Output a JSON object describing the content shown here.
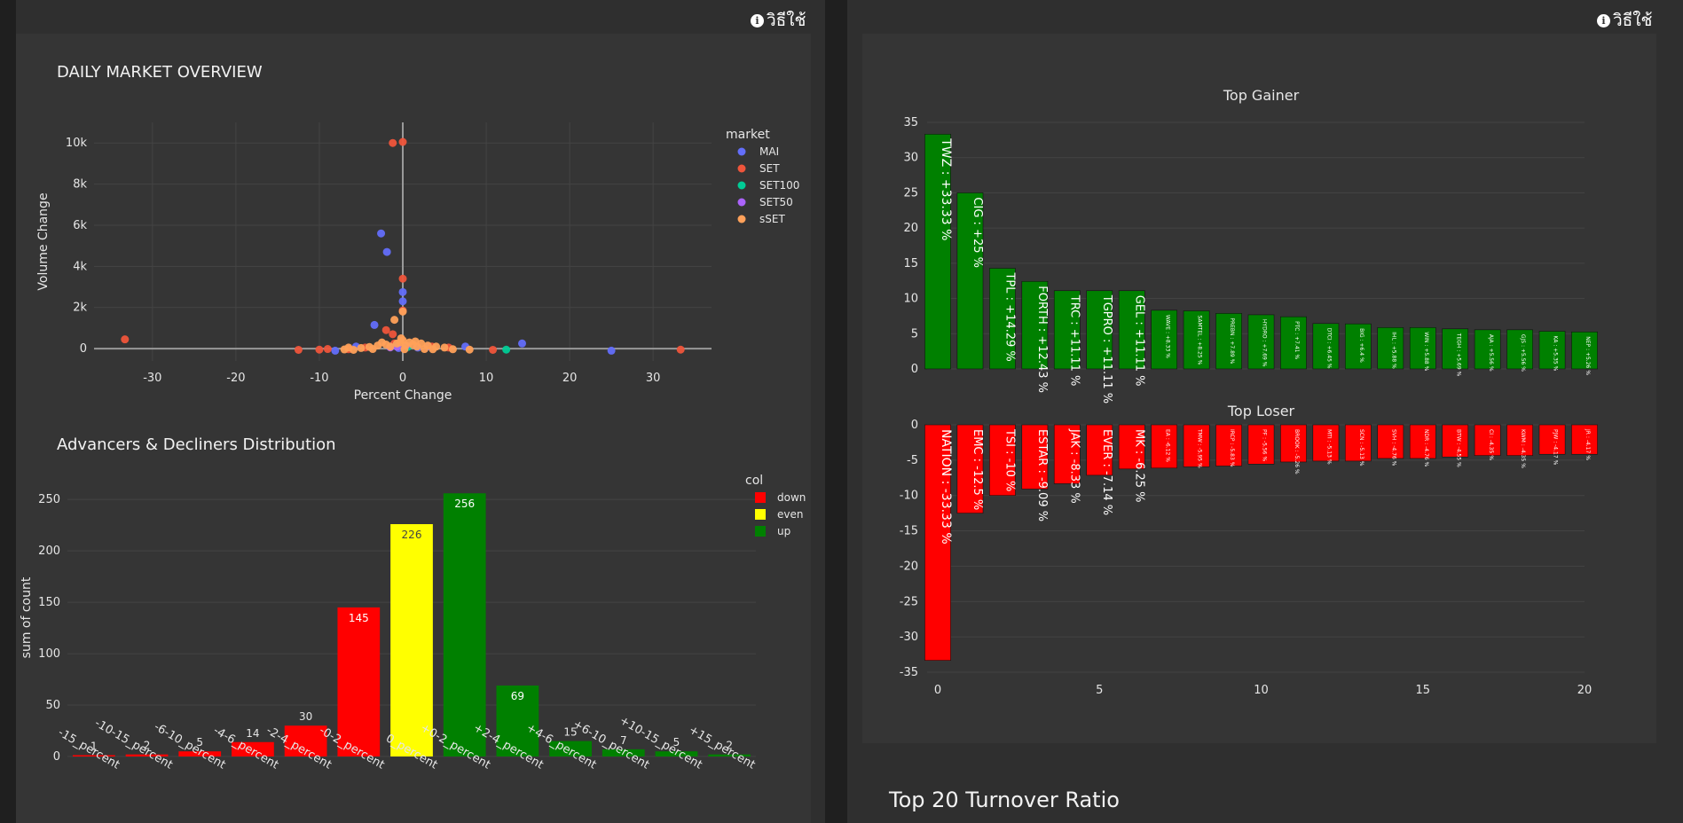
{
  "help_label": "วิธีใช้",
  "section_title": "Top 20 Turnover Ratio",
  "colors": {
    "up": "#008000",
    "down": "#ff0000",
    "even": "#ffff00",
    "MAI": "#636efa",
    "SET": "#ef553b",
    "SET100": "#00cc96",
    "SET50": "#ab63fa",
    "sSET": "#ffa15a"
  },
  "chart_data": [
    {
      "type": "scatter",
      "title": "DAILY MARKET OVERVIEW",
      "xlabel": "Percent Change",
      "ylabel": "Volume Change",
      "xlim": [
        -37,
        37
      ],
      "ylim": [
        -600,
        11000
      ],
      "xticks": [
        -30,
        -20,
        -10,
        0,
        10,
        20,
        30
      ],
      "yticks": [
        {
          "v": 0,
          "label": "0"
        },
        {
          "v": 2000,
          "label": "2k"
        },
        {
          "v": 4000,
          "label": "4k"
        },
        {
          "v": 6000,
          "label": "6k"
        },
        {
          "v": 8000,
          "label": "8k"
        },
        {
          "v": 10000,
          "label": "10k"
        }
      ],
      "legend_title": "market",
      "legend_position": "right",
      "series": [
        {
          "name": "MAI",
          "points": [
            [
              -2.6,
              5600
            ],
            [
              -1.9,
              4700
            ],
            [
              -3.4,
              1150
            ],
            [
              0,
              2750
            ],
            [
              0,
              2300
            ],
            [
              -8.1,
              -100
            ],
            [
              -5.6,
              100
            ],
            [
              7.5,
              100
            ],
            [
              14.3,
              250
            ],
            [
              25,
              -100
            ],
            [
              3,
              100
            ],
            [
              -1.2,
              150
            ],
            [
              1.8,
              50
            ],
            [
              -0.5,
              30
            ]
          ]
        },
        {
          "name": "SET",
          "points": [
            [
              -1.2,
              10000
            ],
            [
              0,
              10050
            ],
            [
              -33.3,
              450
            ],
            [
              0,
              3400
            ],
            [
              -2,
              900
            ],
            [
              -1.2,
              700
            ],
            [
              0,
              1850
            ],
            [
              33.3,
              -50
            ],
            [
              -12.5,
              -60
            ],
            [
              -10,
              -50
            ],
            [
              -9,
              -20
            ],
            [
              -6.5,
              -30
            ],
            [
              -4.5,
              50
            ],
            [
              5.5,
              50
            ],
            [
              10.8,
              -60
            ],
            [
              3.5,
              100
            ],
            [
              -1,
              250
            ]
          ]
        },
        {
          "name": "SET100",
          "points": [
            [
              12.4,
              -50
            ],
            [
              -0.8,
              120
            ],
            [
              0.6,
              80
            ]
          ]
        },
        {
          "name": "SET50",
          "points": [
            [
              -0.7,
              100
            ],
            [
              0.4,
              150
            ],
            [
              -1.5,
              60
            ]
          ]
        },
        {
          "name": "sSET",
          "points": [
            [
              0,
              1800
            ],
            [
              -1,
              1400
            ],
            [
              -5.9,
              -60
            ],
            [
              -4,
              80
            ],
            [
              -3,
              150
            ],
            [
              -2,
              200
            ],
            [
              -1.5,
              100
            ],
            [
              -0.7,
              250
            ],
            [
              -0.3,
              300
            ],
            [
              0,
              400
            ],
            [
              0.3,
              150
            ],
            [
              0.8,
              300
            ],
            [
              1.2,
              200
            ],
            [
              1.7,
              100
            ],
            [
              2.2,
              250
            ],
            [
              3,
              150
            ],
            [
              4,
              100
            ],
            [
              5,
              50
            ],
            [
              6,
              -30
            ],
            [
              8,
              -50
            ],
            [
              -7,
              -40
            ],
            [
              -6.5,
              50
            ],
            [
              -2.5,
              300
            ],
            [
              1.5,
              350
            ],
            [
              0.2,
              -30
            ],
            [
              -0.2,
              500
            ],
            [
              2.6,
              -20
            ],
            [
              3.6,
              -30
            ],
            [
              -3.6,
              -20
            ],
            [
              -5,
              30
            ]
          ]
        }
      ]
    },
    {
      "type": "bar",
      "title": "Advancers & Decliners Distribution",
      "ylabel": "sum of count",
      "ylim": [
        0,
        270
      ],
      "yticks": [
        0,
        50,
        100,
        150,
        200,
        250
      ],
      "legend_title": "col",
      "legend_position": "right",
      "legend": [
        {
          "name": "down",
          "key": "down"
        },
        {
          "name": "even",
          "key": "even"
        },
        {
          "name": "up",
          "key": "up"
        }
      ],
      "categories": [
        "-15_percent",
        "-10-15_percent",
        "-6-10_percent",
        "-4-6_percent",
        "-2-4_percent",
        "-0-2_percent",
        "0_percent",
        "+0-2_percent",
        "+2-4_percent",
        "+4-6_percent",
        "+6-10_percent",
        "+10-15_percent",
        "+15_percent"
      ],
      "values": [
        1,
        2,
        5,
        14,
        30,
        145,
        226,
        256,
        69,
        15,
        7,
        5,
        2
      ],
      "color_keys": [
        "down",
        "down",
        "down",
        "down",
        "down",
        "down",
        "even",
        "up",
        "up",
        "up",
        "up",
        "up",
        "up"
      ]
    },
    {
      "type": "bar",
      "title": "Top Gainer",
      "ylim": [
        0,
        35
      ],
      "yticks": [
        0,
        5,
        10,
        15,
        20,
        25,
        30,
        35
      ],
      "values": [
        33.33,
        25,
        14.29,
        12.43,
        11.11,
        11.11,
        11.11,
        8.33,
        8.25,
        7.89,
        7.69,
        7.41,
        6.45,
        6.4,
        5.88,
        5.88,
        5.69,
        5.56,
        5.56,
        5.35,
        5.26
      ],
      "labels": [
        "TWZ : +33.33 %",
        "CIG : +25 %",
        "TPL : +14.29 %",
        "FORTH : +12.43 %",
        "TRC : +11.11 %",
        "TGPRO : +11.11 %",
        "GEL : +11.11 %",
        "WAVE : +8.33 %",
        "SAMTEL : +8.25 %",
        "PREBN : +7.89 %",
        "HYDRO : +7.69 %",
        "PTC : +7.41 %",
        "DTCI : +6.45 %",
        "BIG : +6.4 %",
        "IHL : +5.88 %",
        "WIN : +5.88 %",
        "TEGH : +5.69 %",
        "AJA : +5.56 %",
        "GJS : +5.56 %",
        "KA : +5.35 %",
        "NEP : +5.26 %"
      ]
    },
    {
      "type": "bar",
      "title": "Top Loser",
      "ylim": [
        -35,
        0
      ],
      "yticks": [
        0,
        -5,
        -10,
        -15,
        -20,
        -25,
        -30,
        -35
      ],
      "xticks": [
        0,
        5,
        10,
        15,
        20
      ],
      "values": [
        -33.33,
        -12.5,
        -10,
        -9.09,
        -8.33,
        -7.14,
        -6.25,
        -6.12,
        -5.95,
        -5.83,
        -5.56,
        -5.26,
        -5.13,
        -5.13,
        -4.76,
        -4.76,
        -4.55,
        -4.35,
        -4.35,
        -4.17,
        -4.17
      ],
      "labels": [
        "NATION : -33.33 %",
        "EMC : -12.5 %",
        "TSI : -10 %",
        "ESTAR : -9.09 %",
        "JAK : -8.33 %",
        "EVER : -7.14 %",
        "MK : -6.25 %",
        "EA : -6.12 %",
        "TMW : -5.95 %",
        "IRCP : -5.83 %",
        "PF : -5.56 %",
        "BROOK : -5.26 %",
        "MTI : -5.13 %",
        "SCN : -5.13 %",
        "SVH : -4.76 %",
        "NDR : -4.76 %",
        "BTW : -4.55 %",
        "CI : -4.35 %",
        "KWM : -4.35 %",
        "PJW : -4.17 %",
        "JR : -4.17 %"
      ]
    }
  ]
}
